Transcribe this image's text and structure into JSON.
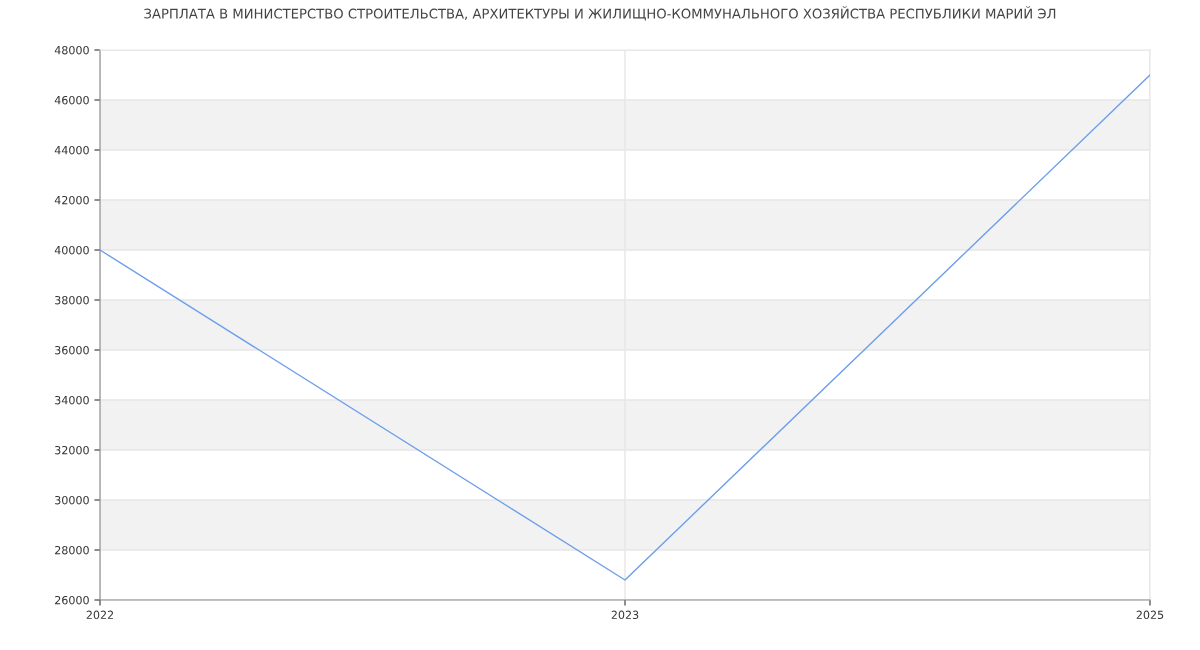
{
  "chart_data": {
    "type": "line",
    "title": "ЗАРПЛАТА В МИНИСТЕРСТВО СТРОИТЕЛЬСТВА, АРХИТЕКТУРЫ И ЖИЛИЩНО-КОММУНАЛЬНОГО ХОЗЯЙСТВА РЕСПУБЛИКИ МАРИЙ ЭЛ",
    "categories": [
      "2022",
      "2023",
      "2025"
    ],
    "series": [
      {
        "color": "#6d9eeb",
        "values": [
          40000,
          26800,
          47000
        ]
      }
    ],
    "ylim": [
      26000,
      48000
    ],
    "yticks": [
      26000,
      28000,
      30000,
      32000,
      34000,
      36000,
      38000,
      40000,
      42000,
      44000,
      46000,
      48000
    ],
    "grid": true,
    "bands": [
      {
        "axis": "y",
        "from": 28000,
        "to": 30000,
        "color": "#f2f2f2"
      },
      {
        "axis": "y",
        "from": 32000,
        "to": 34000,
        "color": "#f2f2f2"
      },
      {
        "axis": "y",
        "from": 36000,
        "to": 38000,
        "color": "#f2f2f2"
      },
      {
        "axis": "y",
        "from": 40000,
        "to": 42000,
        "color": "#f2f2f2"
      },
      {
        "axis": "y",
        "from": 44000,
        "to": 46000,
        "color": "#f2f2f2"
      }
    ]
  }
}
